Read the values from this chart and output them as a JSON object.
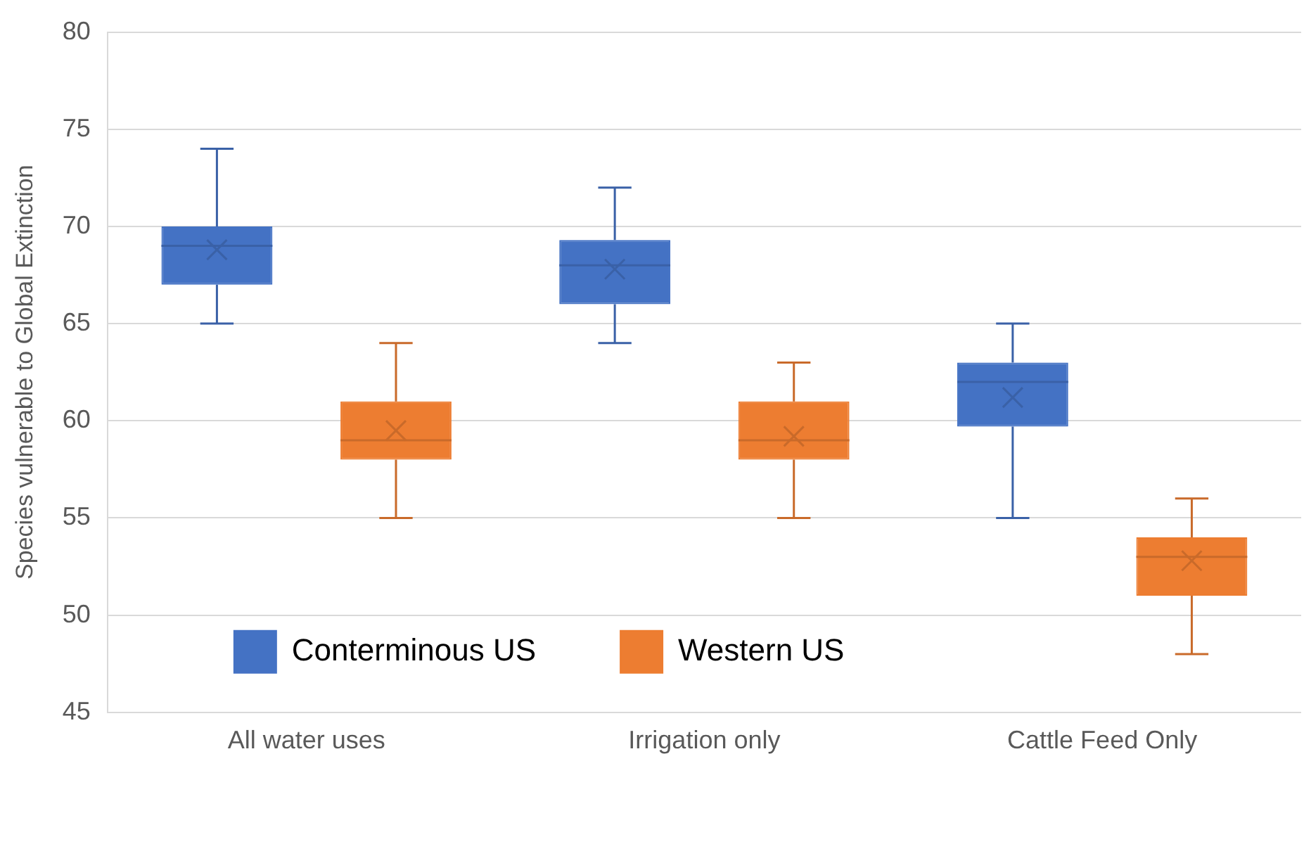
{
  "chart_data": {
    "type": "box",
    "ylabel": "Species vulnerable to Global Extinction",
    "categories": [
      "All water uses",
      "Irrigation only",
      "Cattle Feed Only"
    ],
    "series": [
      {
        "name": "Conterminous US",
        "color": "#4472c4",
        "boxes": [
          {
            "low": 65,
            "q1": 67,
            "median": 69,
            "q3": 70,
            "high": 74,
            "mean": 68.8
          },
          {
            "low": 64,
            "q1": 66,
            "median": 68,
            "q3": 69.3,
            "high": 72,
            "mean": 67.8
          },
          {
            "low": 55,
            "q1": 59.7,
            "median": 62,
            "q3": 63,
            "high": 65,
            "mean": 61.2
          }
        ]
      },
      {
        "name": "Western US",
        "color": "#ed7d31",
        "boxes": [
          {
            "low": 55,
            "q1": 58,
            "median": 59,
            "q3": 61,
            "high": 64,
            "mean": 59.5
          },
          {
            "low": 55,
            "q1": 58,
            "median": 59,
            "q3": 61,
            "high": 63,
            "mean": 59.2
          },
          {
            "low": 48,
            "q1": 51,
            "median": 53,
            "q3": 54,
            "high": 56,
            "mean": 52.8
          }
        ]
      }
    ],
    "ylim": [
      45,
      80
    ],
    "yticks": [
      45,
      50,
      55,
      60,
      65,
      70,
      75,
      80
    ],
    "grid": "y",
    "legend": "bottom left"
  }
}
